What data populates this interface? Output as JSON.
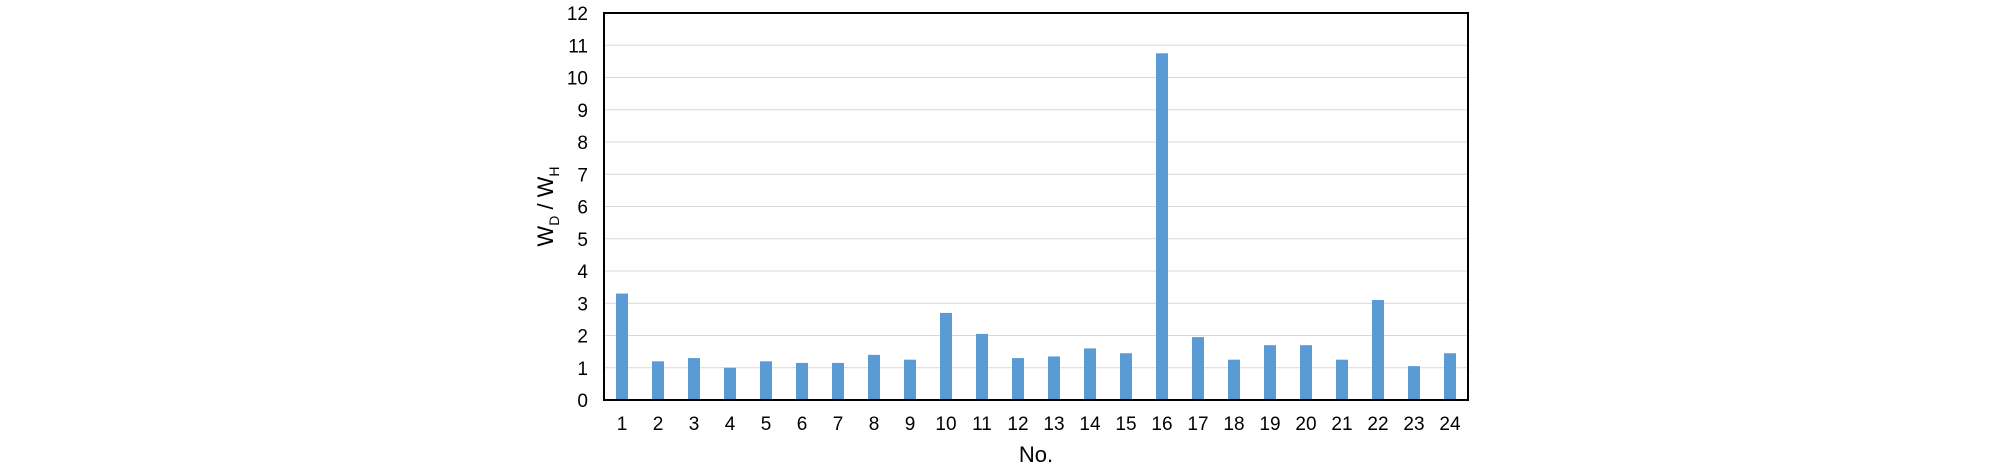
{
  "chart_data": {
    "type": "bar",
    "categories": [
      "1",
      "2",
      "3",
      "4",
      "5",
      "6",
      "7",
      "8",
      "9",
      "10",
      "11",
      "12",
      "13",
      "14",
      "15",
      "16",
      "17",
      "18",
      "19",
      "20",
      "21",
      "22",
      "23",
      "24"
    ],
    "series": [
      {
        "values": [
          3.3,
          1.2,
          1.3,
          1.0,
          1.2,
          1.15,
          1.15,
          1.4,
          1.25,
          2.7,
          2.05,
          1.3,
          1.35,
          1.6,
          1.45,
          10.75,
          1.95,
          1.25,
          1.7,
          1.7,
          1.25,
          3.1,
          1.05,
          1.45
        ],
        "color": "#5b9bd5"
      }
    ],
    "xlabel": "No.",
    "ylabel": {
      "main1": "W",
      "sub1": "D",
      "sep": " / W",
      "sub2": "H"
    },
    "ylim": [
      0,
      12
    ],
    "yticks": [
      "0",
      "1",
      "2",
      "3",
      "4",
      "5",
      "6",
      "7",
      "8",
      "9",
      "10",
      "11",
      "12"
    ],
    "grid": true,
    "legend": "none"
  }
}
